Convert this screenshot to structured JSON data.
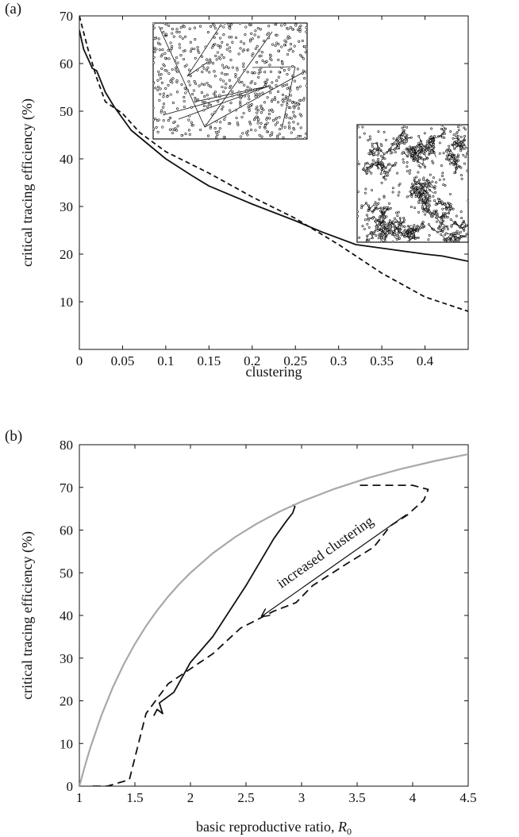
{
  "chart_data": [
    {
      "panel_label": "(a)",
      "type": "line",
      "xlabel": "clustering",
      "ylabel": "critical tracing efficiency (%)",
      "xlim": [
        0,
        0.45
      ],
      "ylim": [
        0,
        70
      ],
      "xticks": [
        "0",
        "0.05",
        "0.1",
        "0.15",
        "0.2",
        "0.25",
        "0.3",
        "0.35",
        "0.4"
      ],
      "xtick_values": [
        0,
        0.05,
        0.1,
        0.15,
        0.2,
        0.25,
        0.3,
        0.35,
        0.4
      ],
      "yticks": [
        "10",
        "20",
        "30",
        "40",
        "50",
        "60",
        "70"
      ],
      "ytick_values": [
        10,
        20,
        30,
        40,
        50,
        60,
        70
      ],
      "grid": false,
      "series": [
        {
          "style": "solid",
          "color": "#111111",
          "x": [
            0,
            0.005,
            0.01,
            0.015,
            0.02,
            0.03,
            0.04,
            0.06,
            0.08,
            0.1,
            0.13,
            0.15,
            0.2,
            0.25,
            0.28,
            0.32,
            0.36,
            0.4,
            0.42,
            0.45
          ],
          "y": [
            67,
            63,
            61,
            59,
            58.5,
            54,
            51,
            46,
            43,
            40,
            36.5,
            34.3,
            30.5,
            27,
            24.7,
            22,
            21,
            20,
            19.6,
            18.5
          ]
        },
        {
          "style": "dashed",
          "color": "#111111",
          "x": [
            0,
            0.01,
            0.02,
            0.03,
            0.05,
            0.07,
            0.1,
            0.15,
            0.2,
            0.25,
            0.3,
            0.35,
            0.4,
            0.45
          ],
          "y": [
            70,
            63,
            57,
            52,
            49.5,
            45.5,
            41.5,
            37,
            32,
            27.5,
            22,
            16,
            11,
            8
          ]
        }
      ],
      "insets": [
        {
          "name": "random-network",
          "description_visual": "sparse random points with few long links"
        },
        {
          "name": "clustered-network",
          "description_visual": "dense clustered lattice of points"
        }
      ]
    },
    {
      "panel_label": "(b)",
      "type": "line",
      "xlabel": "basic reproductive ratio, ",
      "xlabel_symbol": "R",
      "xlabel_sub": "0",
      "ylabel": "critical tracing efficiency (%)",
      "xlim": [
        1,
        4.5
      ],
      "ylim": [
        0,
        80
      ],
      "xticks": [
        "1",
        "1.5",
        "2",
        "2.5",
        "3",
        "3.5",
        "4",
        "4.5"
      ],
      "xtick_values": [
        1,
        1.5,
        2,
        2.5,
        3,
        3.5,
        4,
        4.5
      ],
      "yticks": [
        "0",
        "10",
        "20",
        "30",
        "40",
        "50",
        "60",
        "70",
        "80"
      ],
      "ytick_values": [
        0,
        10,
        20,
        30,
        40,
        50,
        60,
        70,
        80
      ],
      "grid": false,
      "annotation": "increased clustering",
      "series": [
        {
          "style": "solid",
          "color": "#111111",
          "x": [
            1.67,
            1.7,
            1.75,
            1.72,
            1.85,
            2.0,
            2.2,
            2.5,
            2.75,
            2.86,
            2.92,
            2.94,
            2.92
          ],
          "y": [
            16.5,
            18,
            17,
            19.5,
            22,
            29,
            35,
            47,
            58,
            62,
            64,
            65.5,
            66
          ]
        },
        {
          "style": "dashed",
          "color": "#111111",
          "x": [
            1.12,
            1.25,
            1.45,
            1.6,
            1.8,
            2.2,
            2.45,
            2.75,
            2.95,
            3.1,
            3.4,
            3.65,
            3.8,
            3.95,
            4.1,
            4.14,
            4.0,
            3.8,
            3.5
          ],
          "y": [
            0,
            0,
            1.5,
            17,
            24,
            31,
            37,
            41,
            43,
            47,
            52,
            56,
            61,
            63.5,
            67,
            69.5,
            70.5,
            70.5,
            70.5
          ]
        },
        {
          "style": "solid",
          "color": "#a8a8a8",
          "x": [
            1.0,
            1.05,
            1.1,
            1.2,
            1.3,
            1.4,
            1.5,
            1.6,
            1.7,
            1.8,
            1.9,
            2.0,
            2.2,
            2.4,
            2.6,
            2.8,
            3.0,
            3.3,
            3.6,
            3.9,
            4.2,
            4.5
          ],
          "y": [
            0,
            4.76,
            9.09,
            16.67,
            23.08,
            28.57,
            33.33,
            37.5,
            41.18,
            44.44,
            47.37,
            50.0,
            54.55,
            58.33,
            61.54,
            64.29,
            66.67,
            69.7,
            72.22,
            74.36,
            76.19,
            77.78
          ]
        }
      ]
    }
  ]
}
